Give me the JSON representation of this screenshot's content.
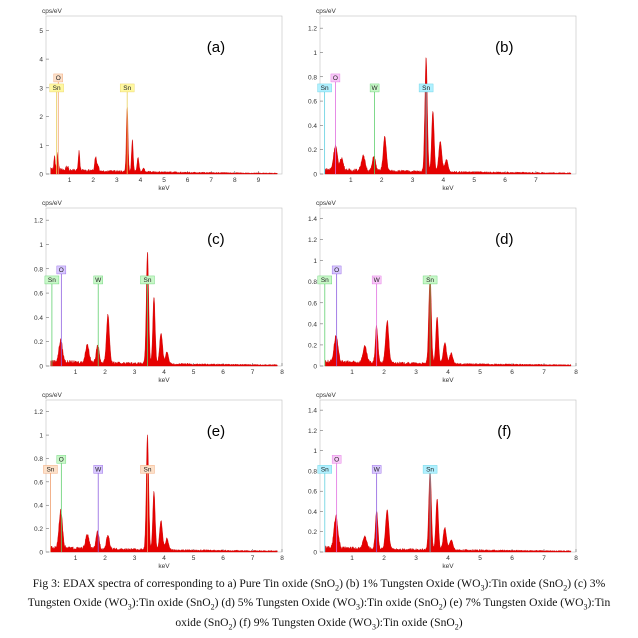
{
  "chart_data": [
    {
      "type": "area",
      "panel_label": "(a)",
      "yunit": "cps/eV",
      "xlabel": "keV",
      "xlim": [
        0,
        10
      ],
      "ylim": [
        0,
        5.5
      ],
      "xticks": [
        1,
        2,
        3,
        4,
        5,
        6,
        7,
        8,
        9
      ],
      "yticks": [
        0,
        1,
        2,
        3,
        4,
        5
      ],
      "peaks": [
        [
          0.15,
          0.9,
          0.02
        ],
        [
          0.36,
          0.45,
          0.03
        ],
        [
          0.5,
          0.55,
          0.035
        ],
        [
          0.9,
          0.12,
          0.05
        ],
        [
          1.4,
          0.7,
          0.03
        ],
        [
          2.1,
          0.5,
          0.04
        ],
        [
          2.2,
          0.2,
          0.04
        ],
        [
          3.44,
          2.25,
          0.035
        ],
        [
          3.66,
          1.1,
          0.035
        ],
        [
          3.9,
          0.5,
          0.04
        ],
        [
          4.13,
          0.15,
          0.04
        ]
      ],
      "markers": [
        {
          "label": "O",
          "x": 0.52,
          "color": "#f0a070",
          "bg": "#fde0c8"
        },
        {
          "label": "Sn",
          "x": 0.45,
          "color": "#e8d060",
          "bg": "#fff8a0"
        },
        {
          "label": "Sn",
          "x": 3.44,
          "color": "#e8d060",
          "bg": "#fff8a0"
        }
      ]
    },
    {
      "type": "area",
      "panel_label": "(b)",
      "yunit": "cps/eV",
      "xlabel": "keV",
      "xlim": [
        0,
        8.3
      ],
      "ylim": [
        0,
        1.3
      ],
      "xticks": [
        1,
        2,
        3,
        4,
        5,
        6,
        7
      ],
      "yticks": [
        0,
        0.2,
        0.4,
        0.6,
        0.8,
        1.0,
        1.2
      ],
      "peaks": [
        [
          0.05,
          0.15,
          0.03
        ],
        [
          0.5,
          0.2,
          0.06
        ],
        [
          0.7,
          0.1,
          0.05
        ],
        [
          1.4,
          0.12,
          0.06
        ],
        [
          1.75,
          0.12,
          0.05
        ],
        [
          2.1,
          0.28,
          0.05
        ],
        [
          3.44,
          0.95,
          0.04
        ],
        [
          3.66,
          0.5,
          0.04
        ],
        [
          3.9,
          0.25,
          0.05
        ],
        [
          4.1,
          0.1,
          0.05
        ]
      ],
      "markers": [
        {
          "label": "Sn",
          "x": 0.15,
          "color": "#60d0e0",
          "bg": "#b0f0ff"
        },
        {
          "label": "O",
          "x": 0.5,
          "color": "#e070e0",
          "bg": "#f8c8f8"
        },
        {
          "label": "W",
          "x": 1.77,
          "color": "#60d070",
          "bg": "#c8f8c8"
        },
        {
          "label": "Sn",
          "x": 3.44,
          "color": "#60d0e0",
          "bg": "#b0f0ff"
        }
      ]
    },
    {
      "type": "area",
      "panel_label": "(c)",
      "yunit": "cps/eV",
      "xlabel": "keV",
      "xlim": [
        0,
        8
      ],
      "ylim": [
        0,
        1.3
      ],
      "xticks": [
        1,
        2,
        3,
        4,
        5,
        6,
        7,
        8
      ],
      "yticks": [
        0,
        0.2,
        0.4,
        0.6,
        0.8,
        1.0,
        1.2
      ],
      "peaks": [
        [
          0.05,
          0.1,
          0.03
        ],
        [
          0.5,
          0.18,
          0.06
        ],
        [
          1.4,
          0.15,
          0.06
        ],
        [
          1.75,
          0.15,
          0.05
        ],
        [
          2.1,
          0.4,
          0.05
        ],
        [
          3.44,
          0.92,
          0.04
        ],
        [
          3.66,
          0.55,
          0.04
        ],
        [
          3.9,
          0.25,
          0.05
        ],
        [
          4.1,
          0.1,
          0.05
        ]
      ],
      "markers": [
        {
          "label": "O",
          "x": 0.52,
          "color": "#9060e0",
          "bg": "#d8c8ff"
        },
        {
          "label": "Sn",
          "x": 0.2,
          "color": "#60d070",
          "bg": "#c8f8c8"
        },
        {
          "label": "W",
          "x": 1.77,
          "color": "#60d070",
          "bg": "#c8f8c8"
        },
        {
          "label": "Sn",
          "x": 3.44,
          "color": "#60d070",
          "bg": "#c8f8c8"
        }
      ]
    },
    {
      "type": "area",
      "panel_label": "(d)",
      "yunit": "cps/eV",
      "xlabel": "keV",
      "xlim": [
        0,
        8
      ],
      "ylim": [
        0,
        1.5
      ],
      "xticks": [
        1,
        2,
        3,
        4,
        5,
        6,
        7,
        8
      ],
      "yticks": [
        0,
        0.2,
        0.4,
        0.6,
        0.8,
        1.0,
        1.2,
        1.4
      ],
      "peaks": [
        [
          0.05,
          0.15,
          0.03
        ],
        [
          0.5,
          0.25,
          0.06
        ],
        [
          1.4,
          0.15,
          0.06
        ],
        [
          1.77,
          0.35,
          0.04
        ],
        [
          2.1,
          0.4,
          0.05
        ],
        [
          3.44,
          0.85,
          0.04
        ],
        [
          3.66,
          0.45,
          0.04
        ],
        [
          3.9,
          0.2,
          0.05
        ],
        [
          4.1,
          0.1,
          0.05
        ]
      ],
      "markers": [
        {
          "label": "O",
          "x": 0.52,
          "color": "#9060e0",
          "bg": "#d8c8ff"
        },
        {
          "label": "Sn",
          "x": 0.15,
          "color": "#60d070",
          "bg": "#c8f8c8"
        },
        {
          "label": "W",
          "x": 1.77,
          "color": "#e070e0",
          "bg": "#f8c8f8"
        },
        {
          "label": "Sn",
          "x": 3.44,
          "color": "#60d070",
          "bg": "#c8f8c8"
        }
      ]
    },
    {
      "type": "area",
      "panel_label": "(e)",
      "yunit": "cps/eV",
      "xlabel": "keV",
      "xlim": [
        0,
        8
      ],
      "ylim": [
        0,
        1.3
      ],
      "xticks": [
        1,
        2,
        3,
        4,
        5,
        6,
        7,
        8
      ],
      "yticks": [
        0,
        0.2,
        0.4,
        0.6,
        0.8,
        1.0,
        1.2
      ],
      "peaks": [
        [
          0.05,
          0.1,
          0.03
        ],
        [
          0.5,
          0.32,
          0.06
        ],
        [
          1.4,
          0.12,
          0.06
        ],
        [
          1.75,
          0.15,
          0.05
        ],
        [
          2.1,
          0.12,
          0.05
        ],
        [
          3.44,
          0.98,
          0.04
        ],
        [
          3.66,
          0.5,
          0.04
        ],
        [
          3.9,
          0.25,
          0.05
        ],
        [
          4.1,
          0.1,
          0.05
        ]
      ],
      "markers": [
        {
          "label": "O",
          "x": 0.52,
          "color": "#60d070",
          "bg": "#c8f8c8"
        },
        {
          "label": "Sn",
          "x": 0.15,
          "color": "#f0a070",
          "bg": "#fde0c8"
        },
        {
          "label": "W",
          "x": 1.77,
          "color": "#9060e0",
          "bg": "#d8c8ff"
        },
        {
          "label": "Sn",
          "x": 3.44,
          "color": "#f0a070",
          "bg": "#fde0c8"
        }
      ]
    },
    {
      "type": "area",
      "panel_label": "(f)",
      "yunit": "cps/eV",
      "xlabel": "keV",
      "xlim": [
        0,
        8
      ],
      "ylim": [
        0,
        1.5
      ],
      "xticks": [
        1,
        2,
        3,
        4,
        5,
        6,
        7,
        8
      ],
      "yticks": [
        0,
        0.2,
        0.4,
        0.6,
        0.8,
        1.0,
        1.2,
        1.4
      ],
      "peaks": [
        [
          0.05,
          0.15,
          0.03
        ],
        [
          0.5,
          0.32,
          0.06
        ],
        [
          1.4,
          0.12,
          0.06
        ],
        [
          1.77,
          0.38,
          0.04
        ],
        [
          2.1,
          0.38,
          0.05
        ],
        [
          3.44,
          0.8,
          0.04
        ],
        [
          3.66,
          0.5,
          0.04
        ],
        [
          3.9,
          0.22,
          0.05
        ],
        [
          4.1,
          0.1,
          0.05
        ]
      ],
      "markers": [
        {
          "label": "O",
          "x": 0.52,
          "color": "#e070e0",
          "bg": "#f8c8f8"
        },
        {
          "label": "Sn",
          "x": 0.15,
          "color": "#60d0e0",
          "bg": "#b0f0ff"
        },
        {
          "label": "W",
          "x": 1.77,
          "color": "#9060e0",
          "bg": "#d8c8ff"
        },
        {
          "label": "Sn",
          "x": 3.44,
          "color": "#60d0e0",
          "bg": "#b0f0ff"
        }
      ]
    }
  ],
  "caption": {
    "l1a": "Fig 3: EDAX spectra of corresponding to a) Pure Tin oxide (SnO",
    "l1b": ") (b) 1% Tungsten Oxide  (WO",
    "l1c": "):Tin oxide (SnO",
    "l1d": ") (c) 3%",
    "l2a": "Tungsten Oxide  (WO",
    "l2b": "):Tin oxide (SnO",
    "l2c": ") (d) 5% Tungsten Oxide  (WO",
    "l2d": "):Tin oxide (SnO",
    "l2e": ") (e) 7% Tungsten Oxide  (WO",
    "l2f": "):Tin",
    "l3a": "oxide (SnO",
    "l3b": ") (f) 9% Tungsten Oxide  (WO",
    "l3c": "):Tin oxide (SnO",
    "l3d": ")",
    "sub2": "2",
    "sub3": "3"
  }
}
